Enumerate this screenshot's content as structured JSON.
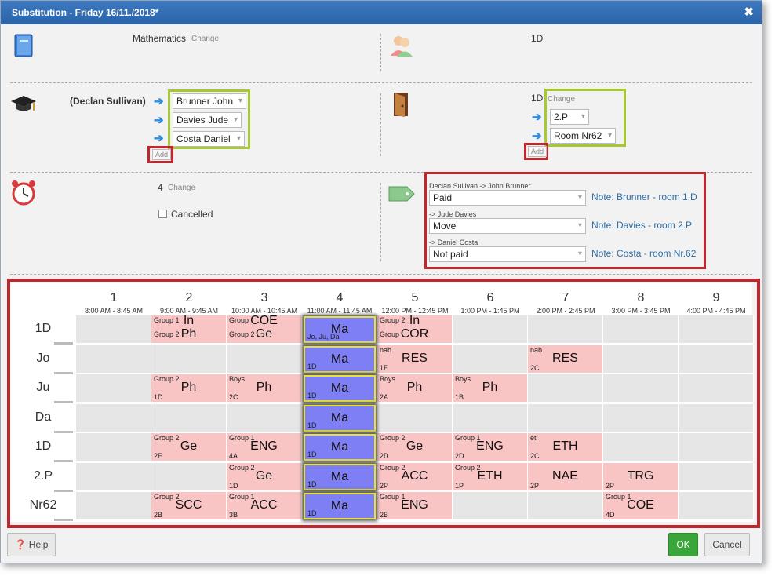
{
  "title": "Substitution - Friday 16/11./2018*",
  "section1": {
    "subject": "Mathematics",
    "change": "Change",
    "class": "1D"
  },
  "section2": {
    "teacher": "(Declan Sullivan)",
    "substitutes": [
      "Brunner John",
      "Davies Jude",
      "Costa Daniel"
    ],
    "add": "Add",
    "room_current": "1D",
    "change": "Change",
    "rooms": [
      "2.P",
      "Room Nr62"
    ],
    "add_room": "Add"
  },
  "section3": {
    "period": "4",
    "change": "Change",
    "cancelled": "Cancelled",
    "items": [
      {
        "label": "Declan Sullivan -> John Brunner",
        "value": "Paid",
        "note": "Note: Brunner - room 1.D"
      },
      {
        "label": "-> Jude Davies",
        "value": "Move",
        "note": "Note: Davies - room 2.P"
      },
      {
        "label": "-> Daniel Costa",
        "value": "Not paid",
        "note": "Note: Costa - room Nr.62"
      }
    ]
  },
  "timetable": {
    "periods": [
      {
        "n": "1",
        "t": "8:00 AM - 8:45 AM"
      },
      {
        "n": "2",
        "t": "9:00 AM - 9:45 AM"
      },
      {
        "n": "3",
        "t": "10:00 AM - 10:45 AM"
      },
      {
        "n": "4",
        "t": "11:00 AM - 11:45 AM"
      },
      {
        "n": "5",
        "t": "12:00 PM - 12:45 PM"
      },
      {
        "n": "6",
        "t": "1:00 PM - 1:45 PM"
      },
      {
        "n": "7",
        "t": "2:00 PM - 2:45 PM"
      },
      {
        "n": "8",
        "t": "3:00 PM - 3:45 PM"
      },
      {
        "n": "9",
        "t": "4:00 PM - 4:45 PM"
      }
    ],
    "rows": [
      "1D",
      "Jo",
      "Ju",
      "Da",
      "1D",
      "2.P",
      "Nr62"
    ],
    "ma_label": "Ma",
    "ma_row0_bottom": "Jo, Ju, Da",
    "ma_bottom": "1D",
    "lessons": [
      {
        "row": 0,
        "col": 1,
        "subj": "In",
        "top": "Group 1",
        "bot": "",
        "split": true,
        "subj2": "Ph",
        "top2": "Group 2"
      },
      {
        "row": 0,
        "col": 2,
        "subj": "COE",
        "top": "Group",
        "bot": "",
        "split": true,
        "subj2": "Ge",
        "top2": "Group 2"
      },
      {
        "row": 0,
        "col": 4,
        "subj": "In",
        "top": "Group 2",
        "bot": "",
        "split": true,
        "subj2": "COR",
        "top2": "Group"
      },
      {
        "row": 1,
        "col": 4,
        "subj": "RES",
        "top": "nab",
        "bot": "1E"
      },
      {
        "row": 1,
        "col": 6,
        "subj": "RES",
        "top": "nab",
        "bot": "2C"
      },
      {
        "row": 2,
        "col": 1,
        "subj": "Ph",
        "top": "Group 2",
        "bot": "1D"
      },
      {
        "row": 2,
        "col": 2,
        "subj": "Ph",
        "top": "Boys",
        "bot": "2C"
      },
      {
        "row": 2,
        "col": 4,
        "subj": "Ph",
        "top": "Boys",
        "bot": "2A"
      },
      {
        "row": 2,
        "col": 5,
        "subj": "Ph",
        "top": "Boys",
        "bot": "1B"
      },
      {
        "row": 4,
        "col": 1,
        "subj": "Ge",
        "top": "Group 2",
        "bot": "2E"
      },
      {
        "row": 4,
        "col": 2,
        "subj": "ENG",
        "top": "Group 1",
        "bot": "4A"
      },
      {
        "row": 4,
        "col": 4,
        "subj": "Ge",
        "top": "Group 2",
        "bot": "2D"
      },
      {
        "row": 4,
        "col": 5,
        "subj": "ENG",
        "top": "Group 1",
        "bot": "2D"
      },
      {
        "row": 4,
        "col": 6,
        "subj": "ETH",
        "top": "eti",
        "bot": "2C"
      },
      {
        "row": 5,
        "col": 2,
        "subj": "Ge",
        "top": "Group 2",
        "bot": "1D"
      },
      {
        "row": 5,
        "col": 4,
        "subj": "ACC",
        "top": "Group 2",
        "bot": "2P"
      },
      {
        "row": 5,
        "col": 5,
        "subj": "ETH",
        "top": "Group 2",
        "bot": "1P"
      },
      {
        "row": 5,
        "col": 6,
        "subj": "NAE",
        "top": "",
        "bot": "2P"
      },
      {
        "row": 5,
        "col": 7,
        "subj": "TRG",
        "top": "",
        "bot": "2P"
      },
      {
        "row": 6,
        "col": 1,
        "subj": "SCC",
        "top": "Group 2",
        "bot": "2B"
      },
      {
        "row": 6,
        "col": 2,
        "subj": "ACC",
        "top": "Group 1",
        "bot": "3B"
      },
      {
        "row": 6,
        "col": 4,
        "subj": "ENG",
        "top": "Group 1",
        "bot": "2B"
      },
      {
        "row": 6,
        "col": 7,
        "subj": "COE",
        "top": "Group 1",
        "bot": "4D"
      }
    ]
  },
  "footer": {
    "help": "Help",
    "ok": "OK",
    "cancel": "Cancel"
  },
  "colors": {
    "title_bar": "#2f6cb3",
    "lesson": "#f9c4c4",
    "substitution": "#7f7ff5",
    "highlight_green": "#a7c733",
    "highlight_red": "#c0272d",
    "ok_button": "#3aa53a"
  }
}
